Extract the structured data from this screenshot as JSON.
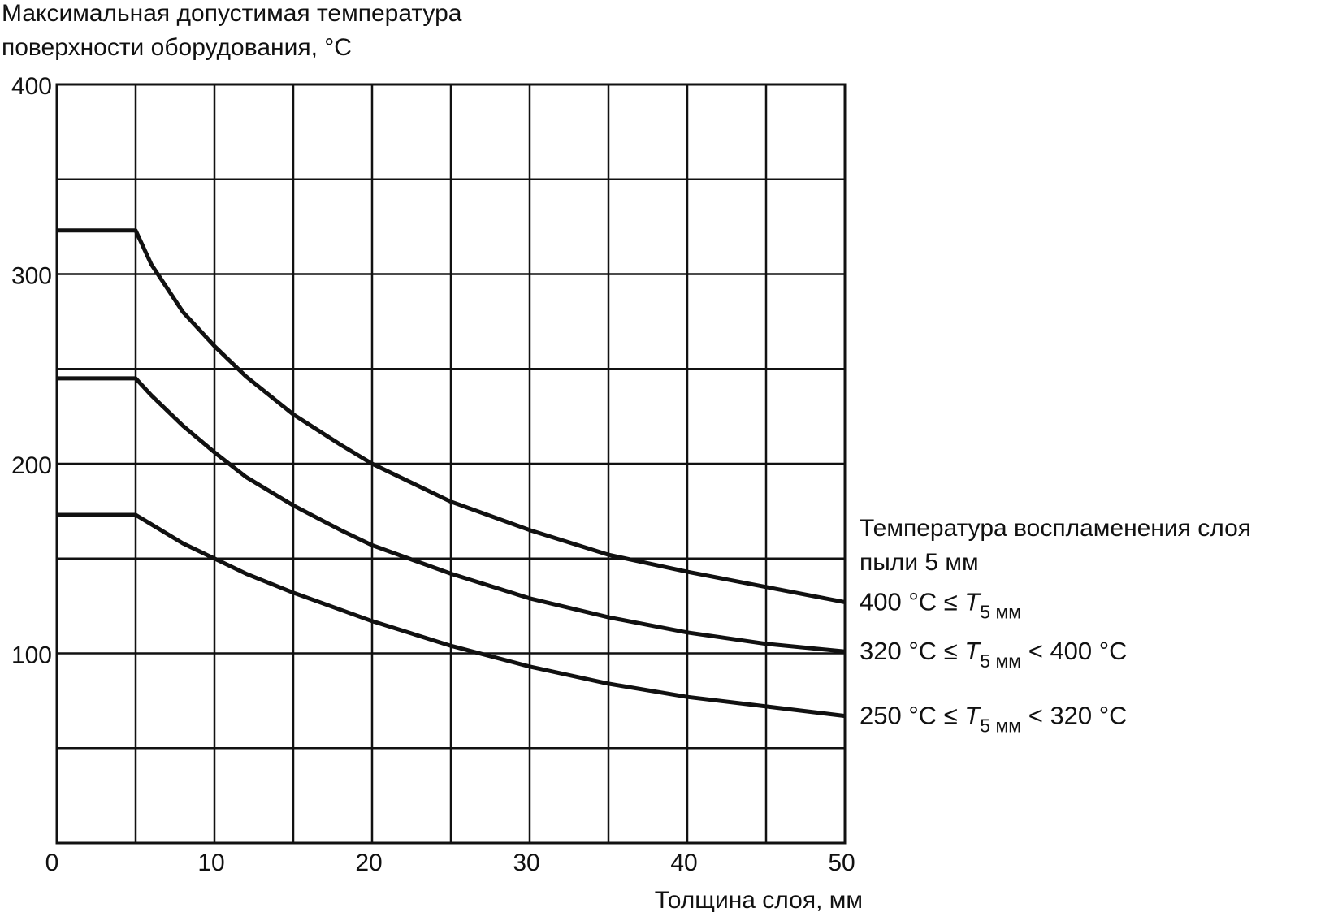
{
  "chart_data": {
    "type": "line",
    "ylabel_line1": "Максимальная допустимая температура",
    "ylabel_line2": "поверхности оборудования, °С",
    "xlabel": "Толщина слоя, мм",
    "xlim": [
      0,
      50
    ],
    "ylim": [
      0,
      400
    ],
    "x_ticks": [
      "0",
      "10",
      "20",
      "30",
      "40",
      "50"
    ],
    "y_ticks": [
      "100",
      "200",
      "300",
      "400"
    ],
    "grid": true,
    "legend_title_line1": "Температура воспламенения слоя",
    "legend_title_line2": "пыли 5 мм",
    "series": [
      {
        "label": {
          "pre": "400 °С ≤ ",
          "var": "T",
          "sub": "5 мм",
          "post": ""
        },
        "x": [
          0,
          5,
          6,
          8,
          10,
          12,
          15,
          18,
          20,
          25,
          30,
          35,
          40,
          45,
          50
        ],
        "y": [
          323,
          323,
          305,
          280,
          262,
          246,
          226,
          210,
          200,
          180,
          165,
          152,
          143,
          135,
          127
        ]
      },
      {
        "label": {
          "pre": "320 °С ≤ ",
          "var": "T",
          "sub": "5 мм",
          "post": " < 400 °С"
        },
        "x": [
          0,
          5,
          6,
          8,
          10,
          12,
          15,
          18,
          20,
          25,
          30,
          35,
          40,
          45,
          50
        ],
        "y": [
          245,
          245,
          236,
          220,
          206,
          193,
          178,
          165,
          157,
          142,
          129,
          119,
          111,
          105,
          101
        ]
      },
      {
        "label": {
          "pre": "250 °С ≤ ",
          "var": "T",
          "sub": "5 мм",
          "post": " < 320 °С"
        },
        "x": [
          0,
          5,
          6,
          8,
          10,
          12,
          15,
          18,
          20,
          25,
          30,
          35,
          40,
          45,
          50
        ],
        "y": [
          173,
          173,
          168,
          158,
          150,
          142,
          132,
          123,
          117,
          104,
          93,
          84,
          77,
          72,
          67
        ]
      }
    ]
  }
}
